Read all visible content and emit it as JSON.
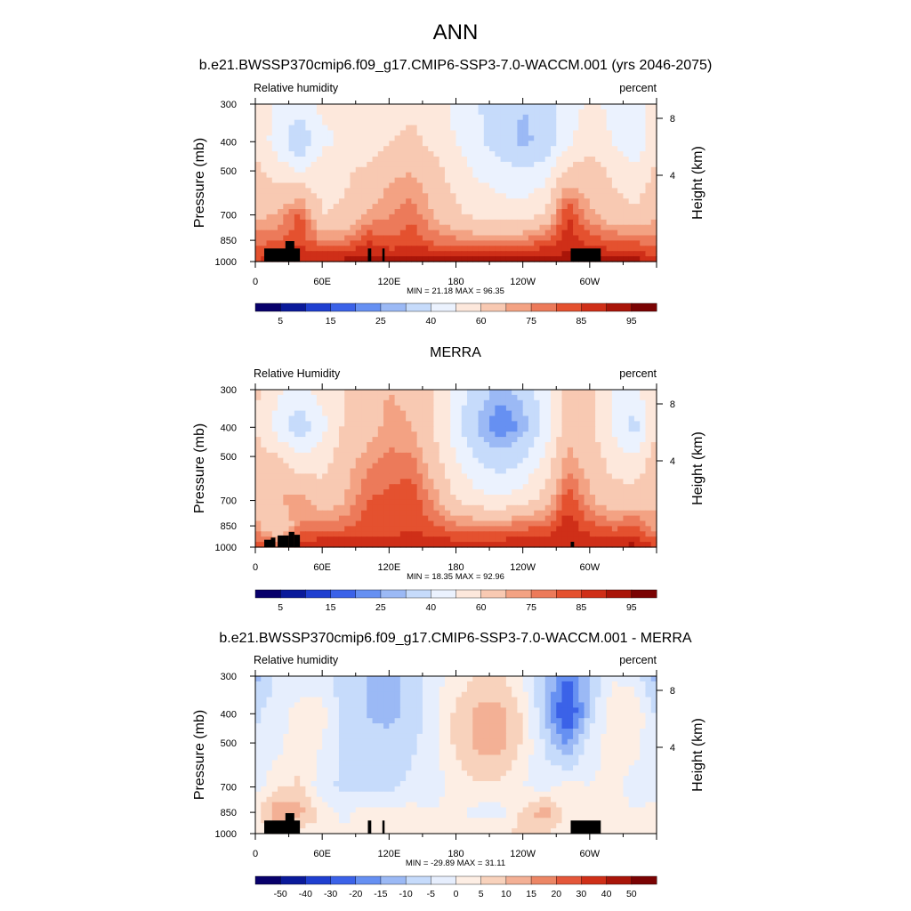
{
  "figure": {
    "title": "ANN"
  },
  "colors": {
    "abs_levels": [
      "#08006b",
      "#0a1a9a",
      "#1f3fd0",
      "#3b62e8",
      "#6690f2",
      "#9bb9f5",
      "#c6dbfb",
      "#ebf2fe",
      "#fde8dc",
      "#f8c9b2",
      "#f3a283",
      "#ec7a5a",
      "#e4512f",
      "#cf2f18",
      "#a91509",
      "#7a0303"
    ],
    "diff_levels": [
      "#08006b",
      "#0a1a9a",
      "#1f3fd0",
      "#3b62e8",
      "#6690f2",
      "#9bb9f5",
      "#c6dbfb",
      "#e6eefd",
      "#fdeee4",
      "#f8d2bc",
      "#f3b095",
      "#ec8665",
      "#e4573a",
      "#cf2f18",
      "#a91509",
      "#7a0303"
    ],
    "topography": "#000000"
  },
  "chart_data": [
    {
      "type": "heatmap",
      "title": "b.e21.BWSSP370cmip6.f09_g17.CMIP6-SSP3-7.0-WACCM.001 (yrs 2046-2075)",
      "left_label": "Relative humidity",
      "right_label": "percent",
      "ylabel": "Pressure (mb)",
      "ylabel_right": "Height (km)",
      "xticks": [
        "0",
        "60E",
        "120E",
        "180",
        "120W",
        "60W"
      ],
      "yticks": [
        "300",
        "400",
        "500",
        "700",
        "850",
        "1000"
      ],
      "yticks_right": [
        "8",
        "4"
      ],
      "stats": "MIN =  21.18  MAX =  96.35",
      "colorbar_labels": [
        "5",
        "15",
        "25",
        "40",
        "60",
        "75",
        "85",
        "95"
      ],
      "ylim": [
        1000,
        300
      ],
      "xlim": [
        0,
        360
      ],
      "field": {
        "lon": [
          0,
          20,
          40,
          60,
          80,
          100,
          120,
          140,
          160,
          180,
          200,
          220,
          240,
          260,
          280,
          300,
          320,
          340,
          360
        ],
        "plev": [
          300,
          400,
          500,
          700,
          850,
          1000
        ],
        "values": [
          [
            55,
            48,
            45,
            52,
            50,
            52,
            55,
            58,
            55,
            47,
            40,
            36,
            30,
            35,
            45,
            52,
            48,
            42,
            55
          ],
          [
            58,
            45,
            30,
            48,
            52,
            55,
            60,
            62,
            58,
            50,
            42,
            35,
            28,
            32,
            48,
            56,
            50,
            40,
            58
          ],
          [
            62,
            55,
            50,
            55,
            58,
            62,
            68,
            70,
            64,
            55,
            48,
            44,
            40,
            45,
            62,
            65,
            58,
            52,
            62
          ],
          [
            68,
            70,
            82,
            60,
            62,
            70,
            75,
            78,
            70,
            62,
            58,
            56,
            55,
            62,
            86,
            72,
            65,
            62,
            68
          ],
          [
            78,
            80,
            84,
            75,
            75,
            85,
            80,
            84,
            78,
            76,
            74,
            74,
            76,
            80,
            88,
            82,
            80,
            78,
            78
          ],
          [
            85,
            88,
            90,
            92,
            92,
            93,
            92,
            93,
            93,
            93,
            93,
            95,
            96,
            94,
            92,
            93,
            92,
            94,
            85
          ]
        ]
      }
    },
    {
      "type": "heatmap",
      "title": "MERRA",
      "left_label": "Relative Humidity",
      "right_label": "percent",
      "ylabel": "Pressure (mb)",
      "ylabel_right": "Height (km)",
      "xticks": [
        "0",
        "60E",
        "120E",
        "180",
        "120W",
        "60W"
      ],
      "yticks": [
        "300",
        "400",
        "500",
        "700",
        "850",
        "1000"
      ],
      "yticks_right": [
        "8",
        "4"
      ],
      "stats": "MIN =  18.35  MAX =  92.96",
      "colorbar_labels": [
        "5",
        "15",
        "25",
        "40",
        "60",
        "75",
        "85",
        "95"
      ],
      "ylim": [
        1000,
        300
      ],
      "xlim": [
        0,
        360
      ],
      "field": {
        "lon": [
          0,
          20,
          40,
          60,
          80,
          100,
          120,
          140,
          160,
          180,
          200,
          220,
          240,
          260,
          280,
          300,
          320,
          340,
          360
        ],
        "plev": [
          300,
          400,
          500,
          700,
          850,
          1000
        ],
        "values": [
          [
            62,
            52,
            48,
            55,
            60,
            65,
            70,
            68,
            60,
            46,
            34,
            28,
            32,
            46,
            62,
            62,
            50,
            45,
            62
          ],
          [
            60,
            45,
            32,
            46,
            62,
            66,
            72,
            70,
            60,
            44,
            28,
            20,
            26,
            44,
            66,
            64,
            48,
            36,
            60
          ],
          [
            65,
            60,
            52,
            55,
            66,
            72,
            76,
            76,
            64,
            50,
            38,
            32,
            38,
            52,
            72,
            66,
            56,
            50,
            65
          ],
          [
            68,
            70,
            74,
            64,
            70,
            80,
            82,
            84,
            74,
            60,
            54,
            52,
            56,
            64,
            84,
            72,
            64,
            66,
            68
          ],
          [
            72,
            60,
            75,
            78,
            78,
            82,
            80,
            84,
            80,
            76,
            76,
            76,
            78,
            80,
            88,
            82,
            78,
            80,
            72
          ],
          [
            85,
            80,
            88,
            90,
            90,
            90,
            90,
            90,
            90,
            90,
            90,
            90,
            90,
            90,
            88,
            90,
            90,
            92,
            85
          ]
        ]
      }
    },
    {
      "type": "heatmap",
      "title": "b.e21.BWSSP370cmip6.f09_g17.CMIP6-SSP3-7.0-WACCM.001 - MERRA",
      "left_label": "Relative humidity",
      "right_label": "percent",
      "ylabel": "Pressure (mb)",
      "ylabel_right": "Height (km)",
      "xticks": [
        "0",
        "60E",
        "120E",
        "180",
        "120W",
        "60W"
      ],
      "yticks": [
        "300",
        "400",
        "500",
        "700",
        "850",
        "1000"
      ],
      "yticks_right": [
        "8",
        "4"
      ],
      "stats": "MIN = -29.89  MAX =  31.11",
      "colorbar_labels": [
        "-50",
        "-40",
        "-30",
        "-20",
        "-15",
        "-10",
        "-5",
        "0",
        "5",
        "10",
        "15",
        "20",
        "30",
        "40",
        "50"
      ],
      "ylim": [
        1000,
        300
      ],
      "xlim": [
        0,
        360
      ],
      "field": {
        "lon": [
          0,
          20,
          40,
          60,
          80,
          100,
          120,
          140,
          160,
          180,
          200,
          220,
          240,
          260,
          280,
          300,
          320,
          340,
          360
        ],
        "plev": [
          300,
          400,
          500,
          700,
          850,
          1000
        ],
        "values": [
          [
            -12,
            -4,
            -3,
            -2,
            -8,
            -10,
            -12,
            -8,
            -2,
            2,
            5,
            6,
            0,
            -10,
            -20,
            -10,
            0,
            -2,
            -12
          ],
          [
            -6,
            -2,
            2,
            2,
            -8,
            -10,
            -12,
            -8,
            -2,
            6,
            12,
            12,
            4,
            -10,
            -28,
            -8,
            2,
            4,
            -6
          ],
          [
            -4,
            -2,
            4,
            0,
            -6,
            -8,
            -8,
            -6,
            -2,
            6,
            12,
            12,
            4,
            -6,
            -16,
            -2,
            2,
            2,
            -4
          ],
          [
            -2,
            4,
            6,
            -4,
            -6,
            -8,
            -6,
            -4,
            -2,
            2,
            4,
            4,
            0,
            -2,
            2,
            0,
            1,
            -2,
            -2
          ],
          [
            2,
            16,
            12,
            4,
            -2,
            3,
            2,
            2,
            0,
            2,
            -2,
            -2,
            6,
            14,
            2,
            2,
            4,
            0,
            2
          ],
          [
            2,
            4,
            3,
            2,
            2,
            3,
            2,
            3,
            3,
            3,
            3,
            5,
            6,
            4,
            4,
            3,
            2,
            2,
            2
          ]
        ]
      }
    }
  ]
}
